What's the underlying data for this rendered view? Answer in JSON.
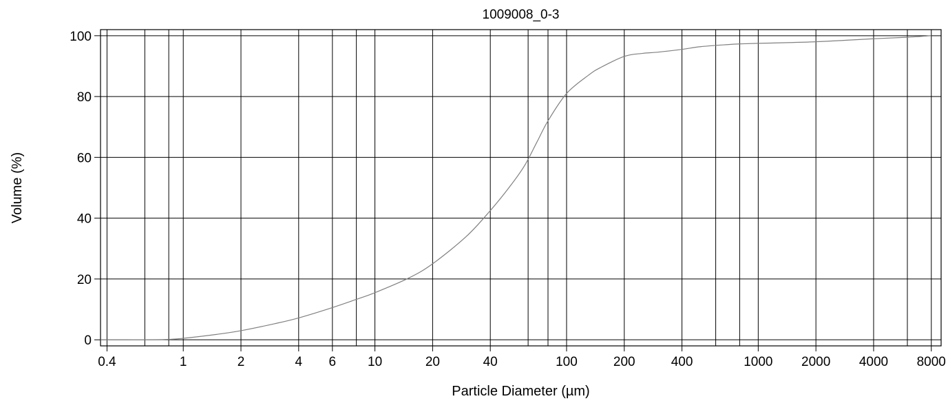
{
  "chart_data": {
    "type": "line",
    "title": "1009008_0-3",
    "xlabel": "Particle Diameter (µm)",
    "ylabel": "Volume (%)",
    "x_scale": "log",
    "xlim": [
      0.37,
      9000
    ],
    "ylim": [
      -2,
      102
    ],
    "x_ticks": [
      0.4,
      1,
      2,
      4,
      6,
      10,
      20,
      40,
      100,
      200,
      400,
      1000,
      2000,
      4000,
      8000
    ],
    "x_tick_labels": [
      "0.4",
      "1",
      "2",
      "4",
      "6",
      "10",
      "20",
      "40",
      "100",
      "200",
      "400",
      "1000",
      "2000",
      "4000",
      "8000"
    ],
    "x_gridlines": [
      0.4,
      0.63,
      0.84,
      1,
      2,
      4,
      6,
      8,
      10,
      20,
      40,
      63,
      80,
      100,
      200,
      400,
      600,
      800,
      1000,
      2000,
      4000,
      6000,
      8000
    ],
    "y_ticks": [
      0,
      20,
      40,
      60,
      80,
      100
    ],
    "y_tick_labels": [
      "0",
      "20",
      "40",
      "60",
      "80",
      "100"
    ],
    "grid": true,
    "series": [
      {
        "color": "#808080",
        "x": [
          0.37,
          0.5,
          0.8,
          1,
          1.5,
          2,
          3,
          4,
          6,
          8,
          10,
          15,
          20,
          30,
          40,
          50,
          60,
          70,
          80,
          100,
          130,
          150,
          200,
          250,
          300,
          400,
          500,
          700,
          800,
          1000,
          2000,
          4000,
          6000,
          8000
        ],
        "y": [
          0,
          0,
          0.1,
          0.5,
          1.8,
          3,
          5.3,
          7.2,
          10.6,
          13.3,
          15.5,
          20.3,
          25,
          34,
          42.5,
          50,
          57,
          65,
          72,
          81,
          87,
          89.5,
          93.2,
          94.2,
          94.6,
          95.5,
          96.4,
          97.1,
          97.3,
          97.5,
          98,
          99,
          99.5,
          100
        ]
      }
    ]
  }
}
